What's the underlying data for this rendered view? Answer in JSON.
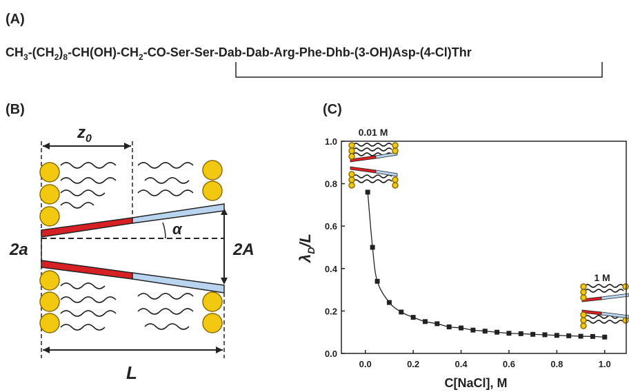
{
  "panel_a": {
    "label": "(A)",
    "formula": [
      "CH",
      "3",
      "-(CH",
      "2",
      ")",
      "8",
      "-CH(OH)-CH",
      "2",
      "-CO-Ser-Ser-Dab-Dab-Arg-Phe-Dhb-(3-OH)Asp-(4-Cl)Thr"
    ]
  },
  "panel_b": {
    "label": "(B)",
    "z0": [
      "z",
      "0"
    ],
    "alpha": "α",
    "two_a": "2a",
    "two_A": "2A",
    "L": "L"
  },
  "chart_data": {
    "type": "scatter",
    "panel_label": "(C)",
    "xlabel": "C[NaCl], M",
    "ylabel": [
      "λ",
      "D",
      "/L"
    ],
    "annotations": [
      "0.01 M",
      "1 M"
    ],
    "x": [
      0.01,
      0.03,
      0.05,
      0.1,
      0.15,
      0.2,
      0.25,
      0.3,
      0.35,
      0.4,
      0.45,
      0.5,
      0.55,
      0.6,
      0.65,
      0.7,
      0.75,
      0.8,
      0.85,
      0.9,
      0.95,
      1.0
    ],
    "series": [
      {
        "color": "#222222",
        "values": [
          0.76,
          0.5,
          0.34,
          0.24,
          0.195,
          0.17,
          0.15,
          0.14,
          0.125,
          0.12,
          0.11,
          0.105,
          0.1,
          0.095,
          0.093,
          0.09,
          0.088,
          0.085,
          0.083,
          0.081,
          0.08,
          0.077
        ]
      }
    ],
    "xlim": [
      -0.1,
      1.09
    ],
    "ylim": [
      0,
      1
    ],
    "xticks": [
      {
        "value": 0,
        "label": "0.0"
      },
      0.2,
      0.4,
      0.6,
      0.8,
      {
        "value": 1,
        "label": "1.0"
      }
    ],
    "yticks": [
      {
        "value": 0,
        "label": "0.0"
      },
      0.2,
      0.4,
      0.6,
      0.8,
      {
        "value": 1,
        "label": "1.0"
      }
    ],
    "line": true
  }
}
